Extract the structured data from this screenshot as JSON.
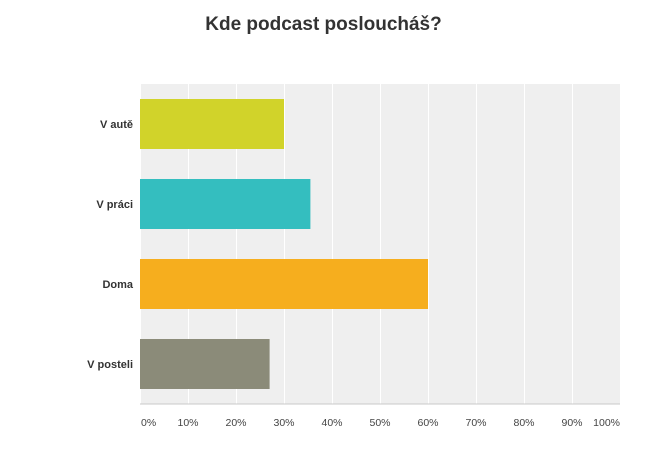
{
  "chart_data": {
    "type": "bar",
    "orientation": "horizontal",
    "title": "Kde podcast posloucháš?",
    "categories": [
      "V autě",
      "V práci",
      "Doma",
      "V posteli"
    ],
    "values": [
      30,
      35.5,
      60,
      27
    ],
    "colors": [
      "#d1d32a",
      "#34bebf",
      "#f6ae1e",
      "#8b8b79"
    ],
    "x_ticks": [
      "0%",
      "10%",
      "20%",
      "30%",
      "40%",
      "50%",
      "60%",
      "70%",
      "80%",
      "90%",
      "100%"
    ],
    "xlim": [
      0,
      100
    ],
    "unit": "%",
    "grid": true,
    "xlabel": "",
    "ylabel": ""
  }
}
